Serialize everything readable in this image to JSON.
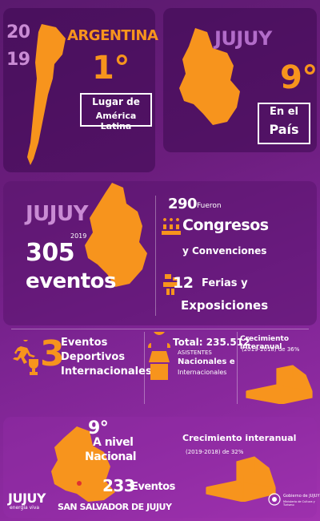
{
  "top_left": {
    "year_a": "20",
    "year_b": "19",
    "country": "ARGENTINA",
    "rank": "1°",
    "rank_line1": "Lugar de",
    "rank_line2": "América Latina"
  },
  "top_right": {
    "province": "JUJUY",
    "rank": "9°",
    "label_line1": "En el",
    "label_line2": "País"
  },
  "middle": {
    "title": "JUJUY",
    "year": "2019",
    "events_count": "305",
    "events_label": "eventos",
    "congress_count": "290",
    "congress_pre": "Fueron",
    "congress_line1": "Congresos",
    "congress_line2": "y Convenciones",
    "fairs_count": "12",
    "fairs_line1": "Ferias y",
    "fairs_line2": "Exposiciones"
  },
  "stats_row": {
    "sports_count": "3",
    "sports_line1": "Eventos",
    "sports_line2": "Deportivos",
    "sports_line3": "Internacionales",
    "total_label": "Total: 235.512",
    "total_sub": "ASISTENTES",
    "total_line1": "Nacionales e",
    "total_line2": "Internacionales",
    "growth_title": "Crecimiento interanual",
    "growth_sub": "(2019-2018) de 36%"
  },
  "bottom": {
    "rank": "9°",
    "rank_line1": "A nivel",
    "rank_line2": "Nacional",
    "events_count": "233",
    "events_label": "Eventos",
    "city": "SAN SALVADOR DE JUJUY",
    "growth_title": "Crecimiento interanual",
    "growth_sub": "(2019-2018) de 32%"
  },
  "footer": {
    "brand": "JUJUY",
    "brand_tag": "energía viva",
    "gov_line1": "Gobierno de JUJUY",
    "gov_line2": "Ministerio de Cultura y Turismo"
  },
  "colors": {
    "accent": "#f7941d",
    "background": "#6b1d7d"
  },
  "icons": [
    "runner-icon",
    "trophy-icon",
    "people-icon",
    "fair-icon",
    "attendant-icon",
    "growth-chart-icon",
    "gov-seal-icon"
  ]
}
